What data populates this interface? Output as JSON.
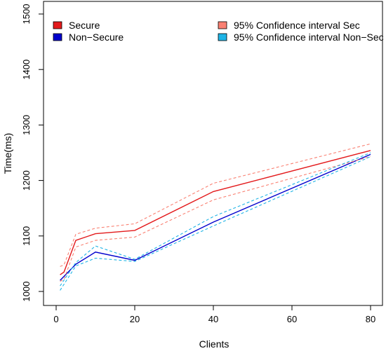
{
  "chart_data": {
    "type": "line",
    "title": "",
    "xlabel": "Clients",
    "ylabel": "Time(ms)",
    "xlim": [
      0,
      80
    ],
    "ylim": [
      1000,
      1500
    ],
    "x_ticks": [
      0,
      20,
      40,
      60,
      80
    ],
    "y_ticks": [
      1000,
      1100,
      1200,
      1300,
      1400,
      1500
    ],
    "grid": false,
    "legend": [
      {
        "label": "Secure",
        "color": "#E31A1C",
        "position": "top-left"
      },
      {
        "label": "Non−Secure",
        "color": "#0000CD",
        "position": "top-left"
      },
      {
        "label": "95% Confidence interval Sec",
        "color": "#FA8072",
        "position": "top-right"
      },
      {
        "label": "95% Confidence interval Non−Sec",
        "color": "#1EB4E6",
        "position": "top-right"
      }
    ],
    "series": [
      {
        "name": "Secure",
        "style": "solid",
        "color": "#E31A1C",
        "x": [
          1,
          2,
          5,
          10,
          20,
          40,
          80
        ],
        "y": [
          1030,
          1035,
          1092,
          1104,
          1110,
          1180,
          1254
        ]
      },
      {
        "name": "Non−Secure",
        "style": "solid",
        "color": "#0000CD",
        "x": [
          1,
          5,
          10,
          20,
          40,
          80
        ],
        "y": [
          1020,
          1049,
          1071,
          1056,
          1125,
          1247
        ]
      },
      {
        "name": "95% Confidence interval Sec",
        "style": "dashed",
        "color": "#FA8072",
        "x": [
          1,
          2,
          5,
          10,
          20,
          40,
          80
        ],
        "y": [
          1045,
          1048,
          1103,
          1114,
          1122,
          1195,
          1266
        ]
      },
      {
        "name": "95% Confidence interval Sec",
        "style": "dashed",
        "color": "#FA8072",
        "x": [
          1,
          2,
          5,
          10,
          20,
          40,
          80
        ],
        "y": [
          1018,
          1022,
          1080,
          1092,
          1098,
          1165,
          1243
        ]
      },
      {
        "name": "95% Confidence interval Non−Sec",
        "style": "dashed",
        "color": "#1EB4E6",
        "x": [
          1,
          5,
          10,
          20,
          40,
          80
        ],
        "y": [
          1010,
          1052,
          1082,
          1058,
          1135,
          1250
        ]
      },
      {
        "name": "95% Confidence interval Non−Sec",
        "style": "dashed",
        "color": "#1EB4E6",
        "x": [
          1,
          5,
          10,
          20,
          40,
          80
        ],
        "y": [
          1002,
          1046,
          1060,
          1054,
          1118,
          1243
        ]
      }
    ]
  }
}
